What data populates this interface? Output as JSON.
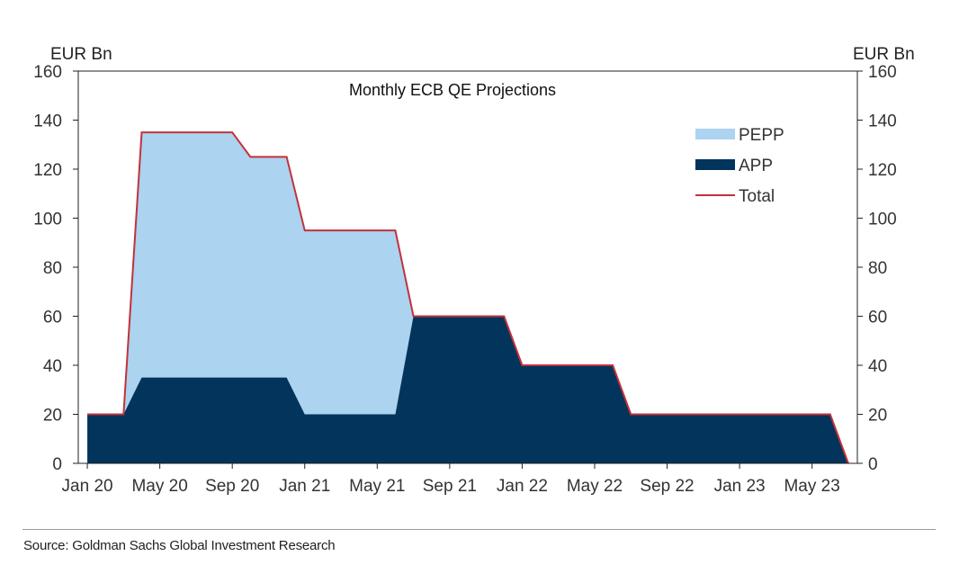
{
  "chart_data": {
    "type": "area",
    "title": "Monthly ECB QE Projections",
    "ylabel_left": "EUR Bn",
    "ylabel_right": "EUR Bn",
    "ylim": [
      0,
      160
    ],
    "yticks": [
      0,
      20,
      40,
      60,
      80,
      100,
      120,
      140,
      160
    ],
    "x_tick_labels": [
      "Jan 20",
      "May 20",
      "Sep 20",
      "Jan 21",
      "May 21",
      "Sep 21",
      "Jan 22",
      "May 22",
      "Sep 22",
      "Jan 23",
      "May 23"
    ],
    "x_tick_month_index": [
      0,
      4,
      8,
      12,
      16,
      20,
      24,
      28,
      32,
      36,
      40
    ],
    "x_range_months": [
      -0.5,
      42.5
    ],
    "series": [
      {
        "name": "PEPP",
        "color": "#acd3ef",
        "points": [
          [
            0,
            0
          ],
          [
            2,
            0
          ],
          [
            3,
            100
          ],
          [
            8,
            100
          ],
          [
            9,
            90
          ],
          [
            11,
            90
          ],
          [
            12,
            75
          ],
          [
            17,
            75
          ],
          [
            18,
            0
          ],
          [
            42,
            0
          ]
        ]
      },
      {
        "name": "APP",
        "color": "#02345c",
        "points": [
          [
            0,
            20
          ],
          [
            2,
            20
          ],
          [
            3,
            35
          ],
          [
            11,
            35
          ],
          [
            12,
            20
          ],
          [
            17,
            20
          ],
          [
            18,
            60
          ],
          [
            23,
            60
          ],
          [
            24,
            40
          ],
          [
            29,
            40
          ],
          [
            30,
            20
          ],
          [
            41,
            20
          ],
          [
            42,
            0
          ]
        ]
      },
      {
        "name": "Total",
        "color": "#c0333b",
        "points": [
          [
            0,
            20
          ],
          [
            2,
            20
          ],
          [
            3,
            135
          ],
          [
            8,
            135
          ],
          [
            9,
            125
          ],
          [
            11,
            125
          ],
          [
            12,
            95
          ],
          [
            17,
            95
          ],
          [
            18,
            60
          ],
          [
            23,
            60
          ],
          [
            24,
            40
          ],
          [
            29,
            40
          ],
          [
            30,
            20
          ],
          [
            41,
            20
          ],
          [
            42,
            0
          ]
        ]
      }
    ],
    "legend": [
      "PEPP",
      "APP",
      "Total"
    ],
    "legend_position": "top-right"
  },
  "footer": {
    "source": "Source: Goldman Sachs Global Investment Research"
  }
}
